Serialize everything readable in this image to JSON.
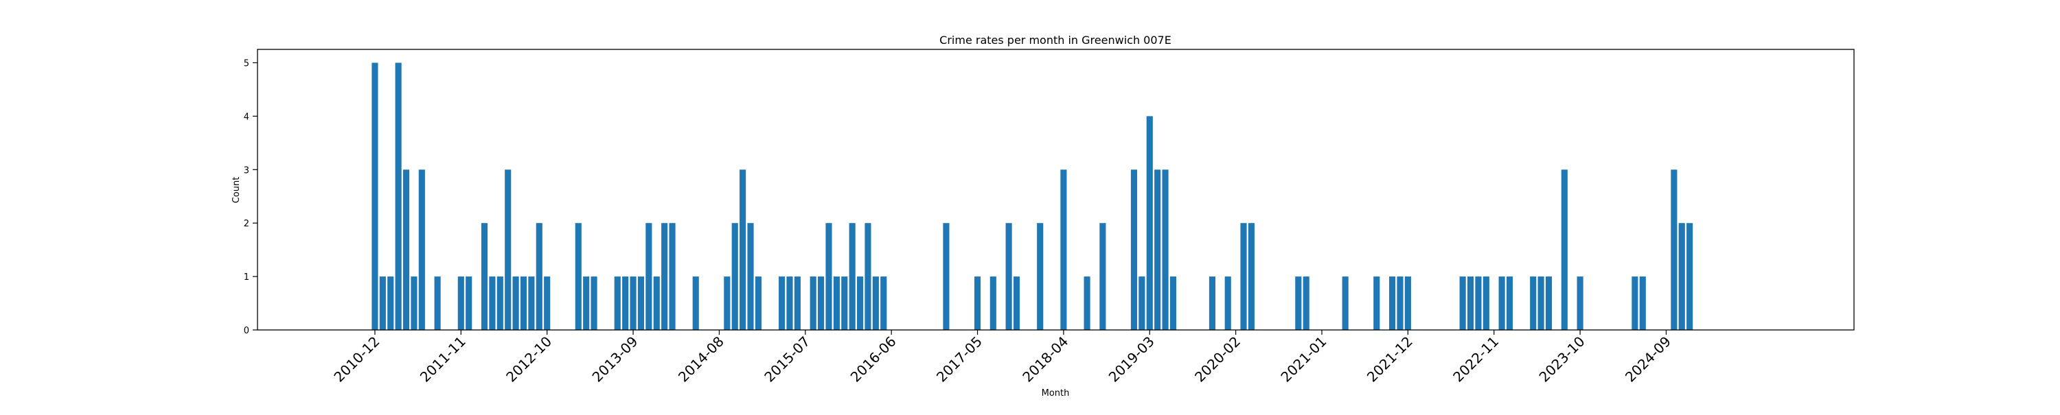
{
  "chart_data": {
    "type": "bar",
    "title": "Crime rates per month in Greenwich 007E",
    "xlabel": "Month",
    "ylabel": "Count",
    "ylim": [
      0,
      5.25
    ],
    "xlim": [
      "2009-09",
      "2026-09"
    ],
    "yticks": [
      0,
      1,
      2,
      3,
      4,
      5
    ],
    "xticks": [
      "2010-12",
      "2011-11",
      "2012-10",
      "2013-09",
      "2014-08",
      "2015-07",
      "2016-06",
      "2017-05",
      "2018-04",
      "2019-03",
      "2020-02",
      "2021-01",
      "2021-12",
      "2022-11",
      "2023-10",
      "2024-09"
    ],
    "bar_color": "#1f77b4",
    "grid": false,
    "x": [
      "2010-12",
      "2011-01",
      "2011-02",
      "2011-03",
      "2011-04",
      "2011-05",
      "2011-06",
      "2011-08",
      "2011-11",
      "2011-12",
      "2012-02",
      "2012-03",
      "2012-04",
      "2012-05",
      "2012-06",
      "2012-07",
      "2012-08",
      "2012-09",
      "2012-10",
      "2013-02",
      "2013-03",
      "2013-04",
      "2013-07",
      "2013-08",
      "2013-09",
      "2013-10",
      "2013-11",
      "2013-12",
      "2014-01",
      "2014-02",
      "2014-05",
      "2014-09",
      "2014-10",
      "2014-11",
      "2014-12",
      "2015-01",
      "2015-04",
      "2015-05",
      "2015-06",
      "2015-08",
      "2015-09",
      "2015-10",
      "2015-11",
      "2015-12",
      "2016-01",
      "2016-02",
      "2016-03",
      "2016-04",
      "2016-05",
      "2017-01",
      "2017-05",
      "2017-07",
      "2017-09",
      "2017-10",
      "2018-01",
      "2018-04",
      "2018-07",
      "2018-09",
      "2019-01",
      "2019-02",
      "2019-03",
      "2019-04",
      "2019-05",
      "2019-06",
      "2019-11",
      "2020-01",
      "2020-03",
      "2020-04",
      "2020-10",
      "2020-11",
      "2021-04",
      "2021-08",
      "2021-10",
      "2021-11",
      "2021-12",
      "2022-07",
      "2022-08",
      "2022-09",
      "2022-10",
      "2022-12",
      "2023-01",
      "2023-04",
      "2023-05",
      "2023-06",
      "2023-08",
      "2023-10",
      "2024-05",
      "2024-06",
      "2024-10",
      "2024-11",
      "2024-12"
    ],
    "values": [
      5,
      1,
      1,
      5,
      3,
      1,
      3,
      1,
      1,
      1,
      2,
      1,
      1,
      3,
      1,
      1,
      1,
      2,
      1,
      2,
      1,
      1,
      1,
      1,
      1,
      1,
      2,
      1,
      2,
      2,
      1,
      1,
      2,
      3,
      2,
      1,
      1,
      1,
      1,
      1,
      1,
      2,
      1,
      1,
      2,
      1,
      2,
      1,
      1,
      2,
      1,
      1,
      2,
      1,
      2,
      3,
      1,
      2,
      3,
      1,
      4,
      3,
      3,
      1,
      1,
      1,
      2,
      2,
      1,
      1,
      1,
      1,
      1,
      1,
      1,
      1,
      1,
      1,
      1,
      1,
      1,
      1,
      1,
      1,
      3,
      1,
      1,
      1,
      3,
      2,
      2
    ]
  }
}
